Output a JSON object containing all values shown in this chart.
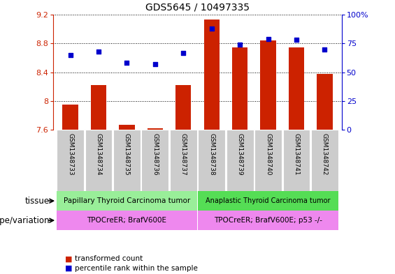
{
  "title": "GDS5645 / 10497335",
  "samples": [
    "GSM1348733",
    "GSM1348734",
    "GSM1348735",
    "GSM1348736",
    "GSM1348737",
    "GSM1348738",
    "GSM1348739",
    "GSM1348740",
    "GSM1348741",
    "GSM1348742"
  ],
  "bar_values": [
    7.95,
    8.22,
    7.67,
    7.62,
    8.22,
    9.13,
    8.75,
    8.84,
    8.75,
    8.38
  ],
  "dot_percentile": [
    65,
    68,
    58,
    57,
    67,
    88,
    74,
    79,
    78,
    70
  ],
  "ylim_left": [
    7.6,
    9.2
  ],
  "ylim_right": [
    0,
    100
  ],
  "yticks_left": [
    7.6,
    8.0,
    8.4,
    8.8,
    9.2
  ],
  "yticks_right": [
    0,
    25,
    50,
    75,
    100
  ],
  "ytick_labels_left": [
    "7.6",
    "8",
    "8.4",
    "8.8",
    "9.2"
  ],
  "ytick_labels_right": [
    "0",
    "25",
    "50",
    "75",
    "100%"
  ],
  "bar_color": "#cc2200",
  "dot_color": "#0000cc",
  "bar_bottom": 7.6,
  "tissue_group1": "Papillary Thyroid Carcinoma tumor",
  "tissue_group2": "Anaplastic Thyroid Carcinoma tumor",
  "tissue_color1": "#99ee99",
  "tissue_color2": "#55dd55",
  "genotype_group1": "TPOCreER; BrafV600E",
  "genotype_group2": "TPOCreER; BrafV600E; p53 -/-",
  "genotype_color": "#ee88ee",
  "tissue_label": "tissue",
  "genotype_label": "genotype/variation",
  "legend_bar": "transformed count",
  "legend_dot": "percentile rank within the sample",
  "n_group1": 5,
  "n_group2": 5,
  "sample_bg": "#cccccc",
  "bar_width": 0.55,
  "dot_size": 18
}
